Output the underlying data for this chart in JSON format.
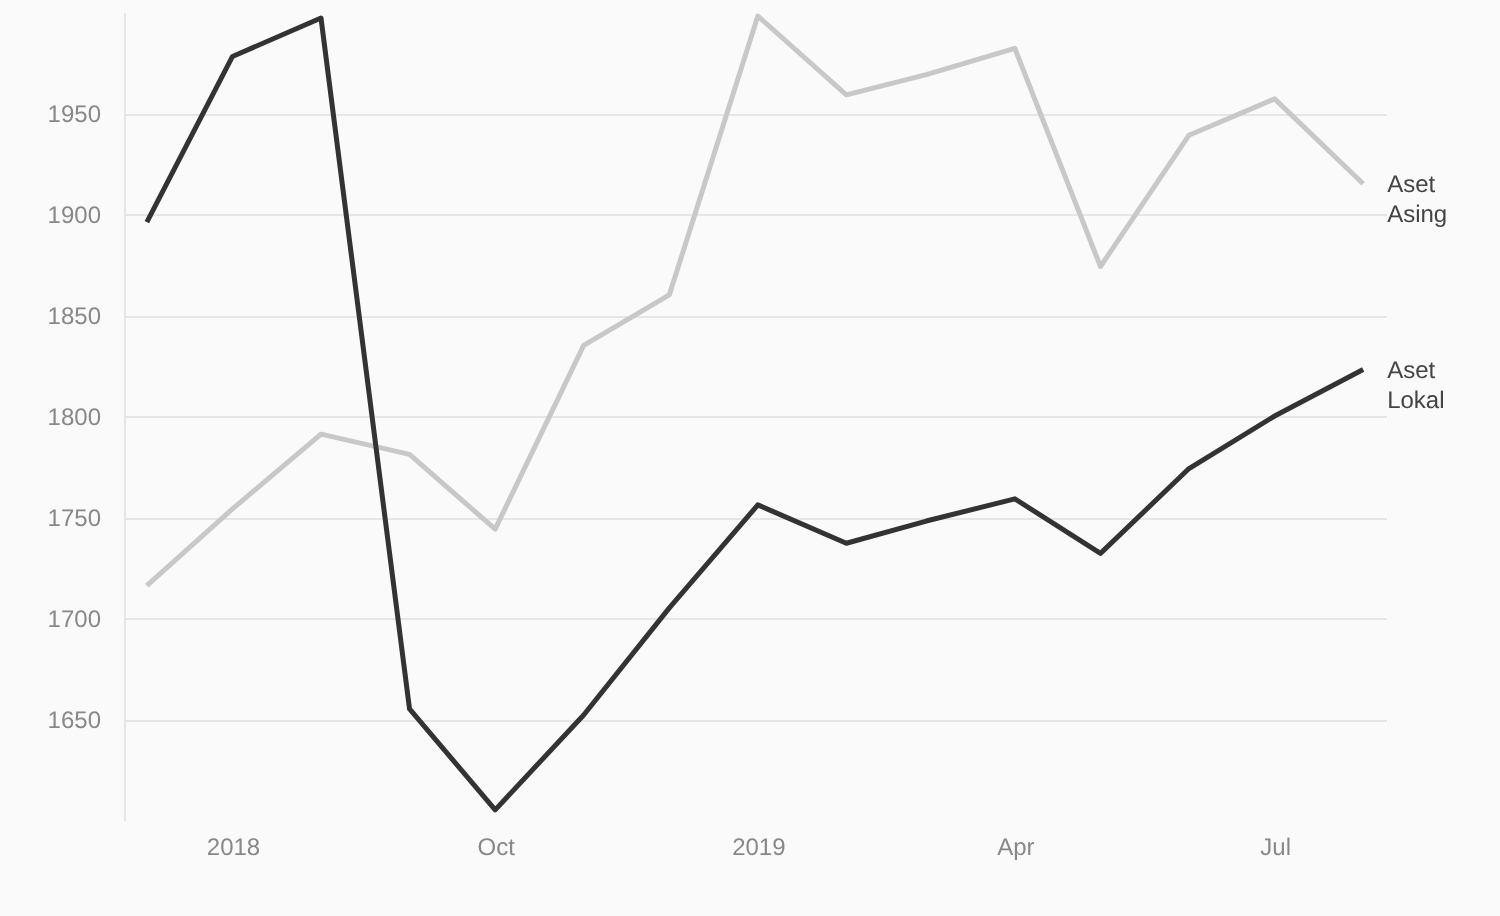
{
  "chart_data": {
    "type": "line",
    "x": [
      "2018-06",
      "2018-07",
      "2018-08",
      "2018-09",
      "2018-10",
      "2018-11",
      "2018-12",
      "2019-01",
      "2019-02",
      "2019-03",
      "2019-04",
      "2019-05",
      "2019-06",
      "2019-07",
      "2019-08"
    ],
    "series": [
      {
        "name": "Aset Asing",
        "color": "#c8c8c8",
        "values": [
          1716,
          1754,
          1791,
          1781,
          1744,
          1835,
          1860,
          1998,
          1959,
          1969,
          1982,
          1874,
          1939,
          1957,
          1915
        ]
      },
      {
        "name": "Aset Lokal",
        "color": "#333333",
        "values": [
          1896,
          1978,
          1997,
          1655,
          1605,
          1652,
          1705,
          1756,
          1737,
          1748,
          1759,
          1732,
          1774,
          1800,
          1823
        ]
      }
    ],
    "xlim": [
      "2018-05-24",
      "2019-08-09"
    ],
    "xticks": [
      {
        "value": "2018-07",
        "label": "2018"
      },
      {
        "value": "2018-10",
        "label": "Oct"
      },
      {
        "value": "2019-01",
        "label": "2019"
      },
      {
        "value": "2019-04",
        "label": "Apr"
      },
      {
        "value": "2019-07",
        "label": "Jul"
      }
    ],
    "ylim": [
      1600,
      2000
    ],
    "yticks": [
      1650,
      1700,
      1750,
      1800,
      1850,
      1900,
      1950
    ],
    "grid": "y"
  }
}
